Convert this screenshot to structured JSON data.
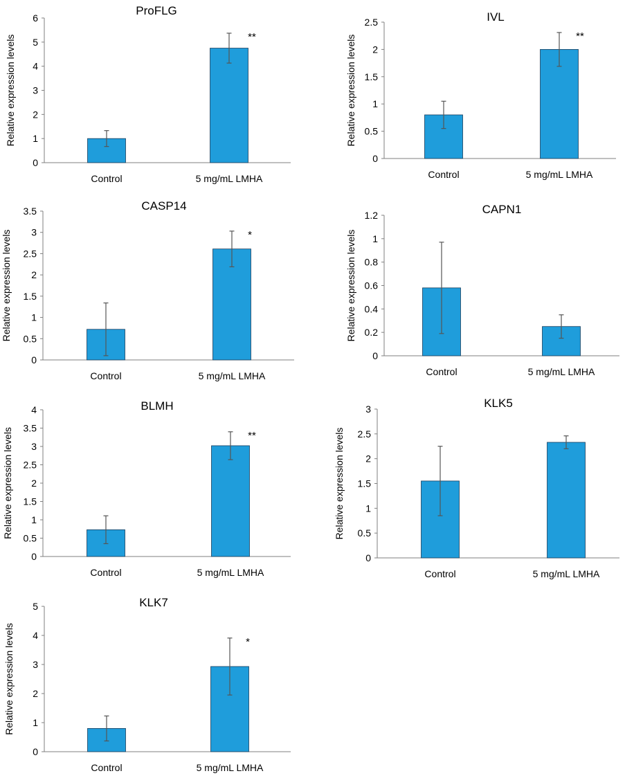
{
  "chart_data": [
    {
      "type": "bar",
      "title": "ProFLG",
      "ylabel": "Relative expression levels",
      "categories": [
        "Control",
        "5 mg/mL LMHA"
      ],
      "values": [
        1.0,
        4.75
      ],
      "errors": [
        0.33,
        0.62
      ],
      "annotations": [
        "",
        "**"
      ],
      "ylim": [
        0,
        6
      ],
      "yticks": [
        0,
        1,
        2,
        3,
        4,
        5,
        6
      ],
      "ytick_labels": [
        "0",
        "1",
        "2",
        "3",
        "4",
        "5",
        "6"
      ],
      "grid": false,
      "bar_color": "#1f9ddb"
    },
    {
      "type": "bar",
      "title": "IVL",
      "ylabel": "Relative expression levels",
      "categories": [
        "Control",
        "5 mg/mL LMHA"
      ],
      "values": [
        0.8,
        2.0
      ],
      "errors": [
        0.25,
        0.31
      ],
      "annotations": [
        "",
        "**"
      ],
      "ylim": [
        0,
        2.5
      ],
      "yticks": [
        0,
        0.5,
        1,
        1.5,
        2,
        2.5
      ],
      "ytick_labels": [
        "0",
        "0.5",
        "1",
        "1.5",
        "2",
        "2.5"
      ],
      "grid": false,
      "bar_color": "#1f9ddb"
    },
    {
      "type": "bar",
      "title": "CASP14",
      "ylabel": "Relative expression levels",
      "categories": [
        "Control",
        "5 mg/mL  LMHA"
      ],
      "values": [
        0.72,
        2.61
      ],
      "errors": [
        0.62,
        0.42
      ],
      "annotations": [
        "",
        "*"
      ],
      "ylim": [
        0,
        3.5
      ],
      "yticks": [
        0,
        0.5,
        1,
        1.5,
        2,
        2.5,
        3,
        3.5
      ],
      "ytick_labels": [
        "0",
        "0.5",
        "1",
        "1.5",
        "2",
        "2.5",
        "3",
        "3.5"
      ],
      "grid": false,
      "bar_color": "#1f9ddb"
    },
    {
      "type": "bar",
      "title": "CAPN1",
      "ylabel": "Relative expression levels",
      "categories": [
        "Control",
        "5 mg/mL LMHA"
      ],
      "values": [
        0.58,
        0.25
      ],
      "errors": [
        0.39,
        0.1
      ],
      "annotations": [
        "",
        ""
      ],
      "ylim": [
        0,
        1.2
      ],
      "yticks": [
        0,
        0.2,
        0.4,
        0.6,
        0.8,
        1,
        1.2
      ],
      "ytick_labels": [
        "0",
        "0.2",
        "0.4",
        "0.6",
        "0.8",
        "1",
        "1.2"
      ],
      "grid": false,
      "bar_color": "#1f9ddb"
    },
    {
      "type": "bar",
      "title": "BLMH",
      "ylabel": "Relative expression levels",
      "categories": [
        "Control",
        "5 mg/mL LMHA"
      ],
      "values": [
        0.73,
        3.02
      ],
      "errors": [
        0.38,
        0.38
      ],
      "annotations": [
        "",
        "**"
      ],
      "ylim": [
        0,
        4
      ],
      "yticks": [
        0,
        0.5,
        1,
        1.5,
        2,
        2.5,
        3,
        3.5,
        4
      ],
      "ytick_labels": [
        "0",
        "0.5",
        "1",
        "1.5",
        "2",
        "2.5",
        "3",
        "3.5",
        "4"
      ],
      "grid": false,
      "bar_color": "#1f9ddb"
    },
    {
      "type": "bar",
      "title": "KLK5",
      "ylabel": "Relative expression levels",
      "categories": [
        "Control",
        "5 mg/mL LMHA"
      ],
      "values": [
        1.55,
        2.33
      ],
      "errors": [
        0.7,
        0.13
      ],
      "annotations": [
        "",
        ""
      ],
      "ylim": [
        0,
        3
      ],
      "yticks": [
        0,
        0.5,
        1,
        1.5,
        2,
        2.5,
        3
      ],
      "ytick_labels": [
        "0",
        "0.5",
        "1",
        "1.5",
        "2",
        "2.5",
        "3"
      ],
      "grid": false,
      "bar_color": "#1f9ddb"
    },
    {
      "type": "bar",
      "title": "KLK7",
      "ylabel": "Relative expression levels",
      "categories": [
        "Control",
        "5 mg/mL LMHA"
      ],
      "values": [
        0.8,
        2.93
      ],
      "errors": [
        0.43,
        0.98
      ],
      "annotations": [
        "",
        "*"
      ],
      "ylim": [
        0,
        5
      ],
      "yticks": [
        0,
        1,
        2,
        3,
        4,
        5
      ],
      "ytick_labels": [
        "0",
        "1",
        "2",
        "3",
        "4",
        "5"
      ],
      "grid": false,
      "bar_color": "#1f9ddb"
    }
  ]
}
